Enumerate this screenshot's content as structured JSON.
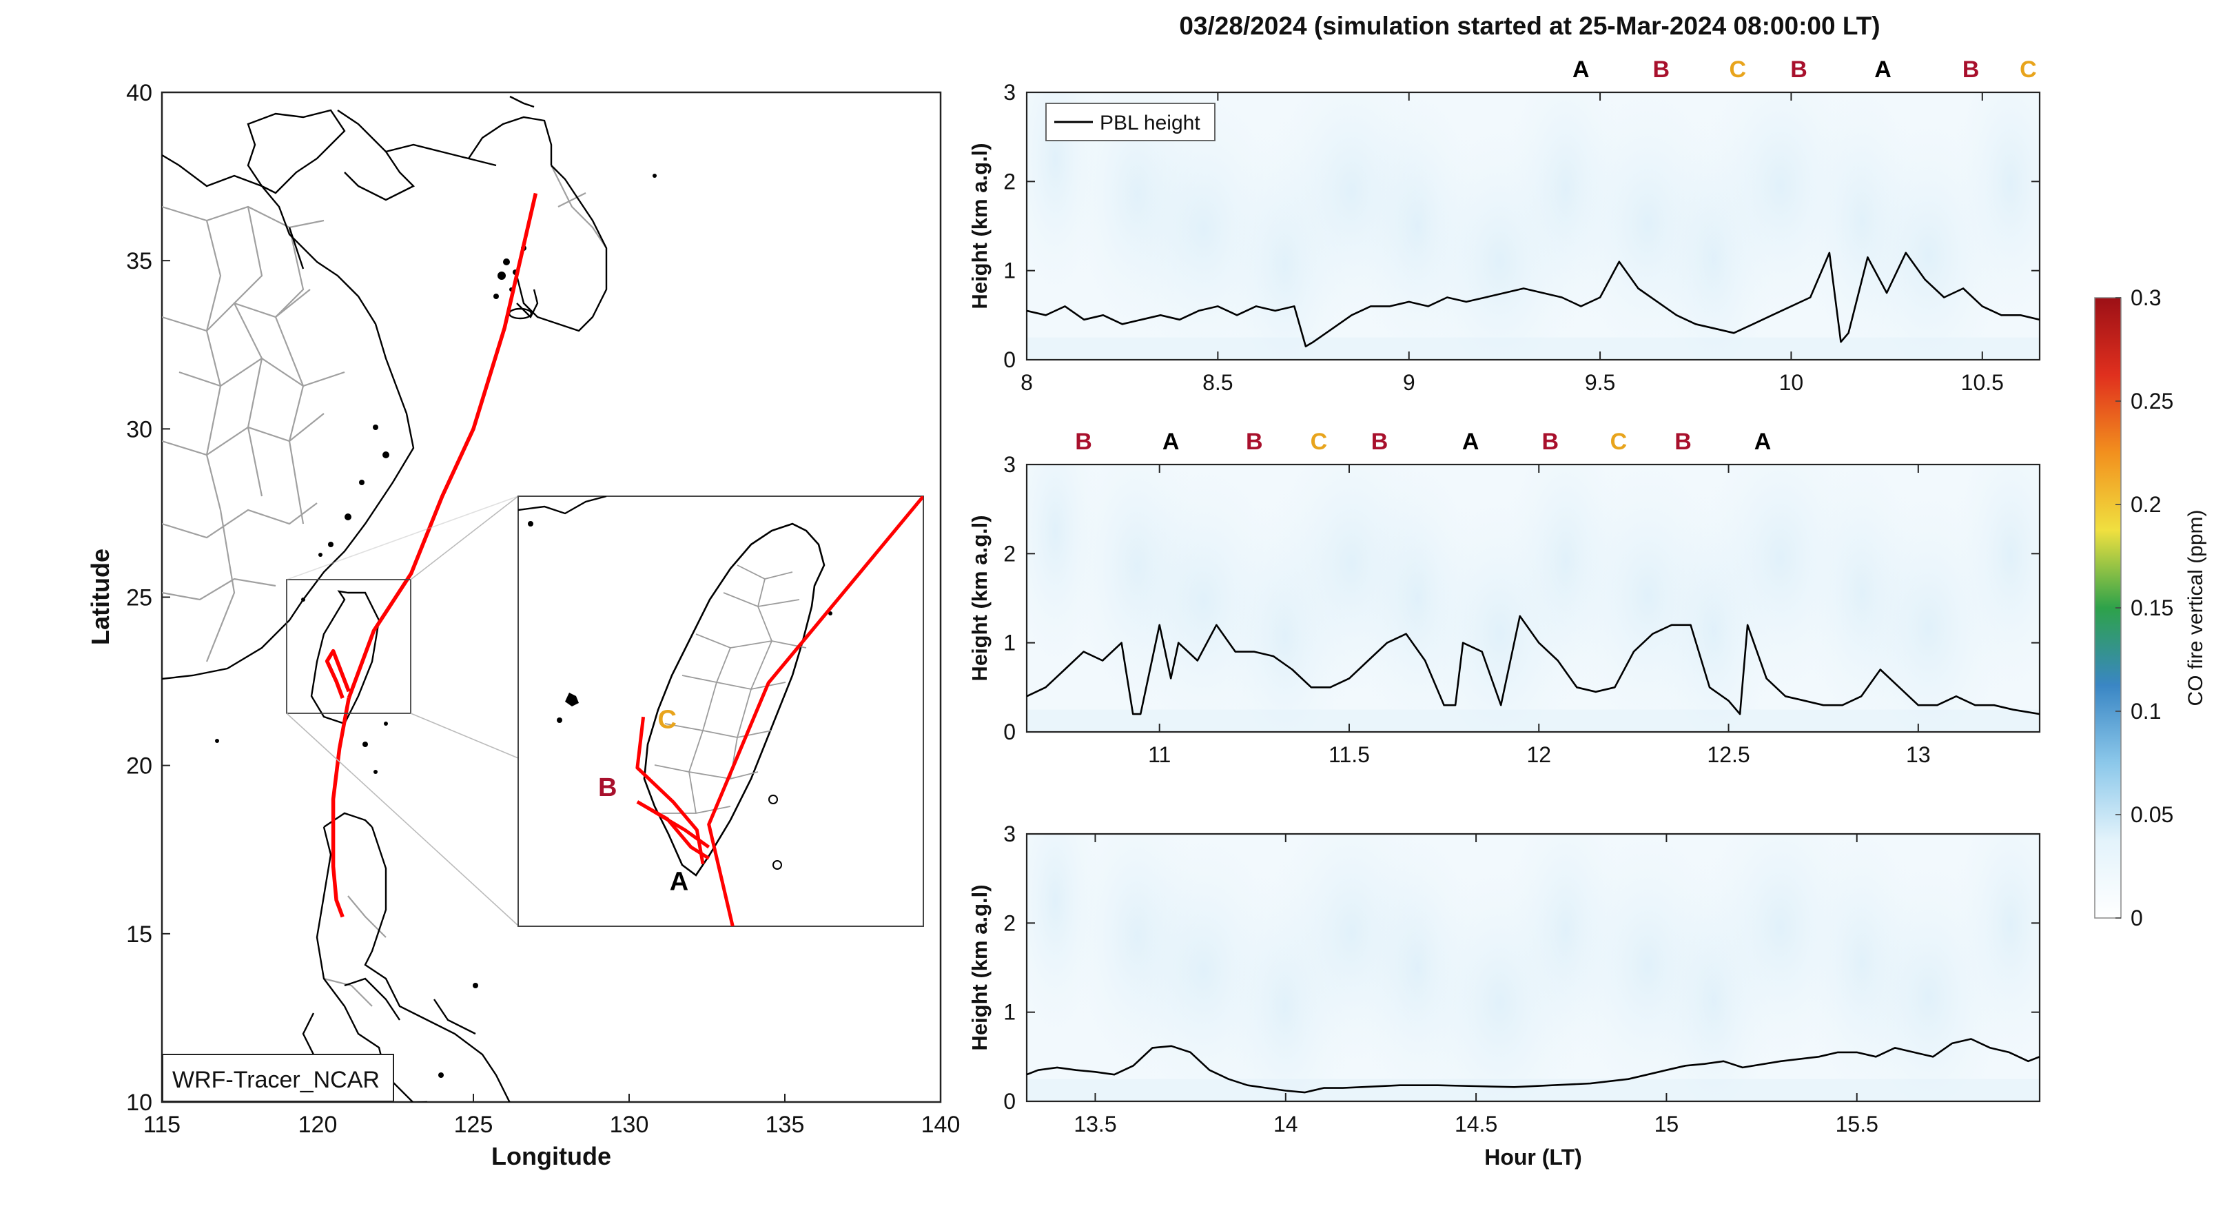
{
  "title": "03/28/2024 (simulation started at 25-Mar-2024 08:00:00 LT)",
  "colors": {
    "track": "#ff0000",
    "A": "#000000",
    "B": "#a8102c",
    "C": "#e8a41c",
    "pbl": "#000000",
    "coast": "#000000",
    "admin": "#9a9a9a"
  },
  "chart_data": [
    {
      "type": "line",
      "panel": "map",
      "xlabel": "Longitude",
      "ylabel": "Latitude",
      "xlim": [
        115,
        140
      ],
      "ylim": [
        10,
        40
      ],
      "xticks": [
        115,
        120,
        125,
        130,
        135,
        140
      ],
      "yticks": [
        10,
        15,
        20,
        25,
        30,
        35,
        40
      ],
      "model_label": "WRF-Tracer_NCAR",
      "series": [
        {
          "x": [
            127.0,
            126.5,
            126.0,
            125.0,
            124.0,
            123.0,
            121.8,
            121.0
          ],
          "y": [
            37.0,
            35.0,
            33.0,
            30.0,
            28.0,
            25.7,
            24.0,
            22.0
          ]
        },
        {
          "x": [
            121.0,
            120.7,
            120.5,
            120.5,
            120.6,
            120.8
          ],
          "y": [
            22.0,
            20.5,
            19.0,
            17.0,
            16.0,
            15.5
          ]
        },
        {
          "x": [
            120.8,
            120.6,
            120.3,
            120.5,
            121.0
          ],
          "y": [
            22.0,
            22.5,
            23.1,
            23.4,
            22.2
          ]
        }
      ],
      "inset": {
        "xlim": [
          119.1,
          122.5
        ],
        "ylim": [
          21.6,
          25.4
        ],
        "letters": [
          {
            "text": "C",
            "x": 120.35,
            "y": 23.35
          },
          {
            "text": "B",
            "x": 119.85,
            "y": 22.75
          },
          {
            "text": "A",
            "x": 120.45,
            "y": 21.92
          }
        ],
        "tracks": [
          {
            "x": [
              122.5,
              121.2,
              120.7,
              120.9
            ],
            "y": [
              25.4,
              23.75,
              22.5,
              21.6
            ]
          },
          {
            "x": [
              120.15,
              120.1,
              120.4,
              120.6,
              120.65
            ],
            "y": [
              23.45,
              23.0,
              22.7,
              22.45,
              22.15
            ]
          },
          {
            "x": [
              120.1,
              120.5,
              120.7
            ],
            "y": [
              22.7,
              22.45,
              22.3
            ]
          },
          {
            "x": [
              120.1,
              120.35,
              120.55,
              120.7
            ],
            "y": [
              22.7,
              22.55,
              22.3,
              22.2
            ]
          }
        ]
      }
    },
    {
      "type": "line",
      "panel": "pbl-1",
      "legend": "PBL height",
      "ylabel": "Height (km a.g.l)",
      "xlim": [
        8.0,
        10.65
      ],
      "ylim": [
        0,
        3
      ],
      "xticks": [
        8,
        8.5,
        9,
        9.5,
        10,
        10.5
      ],
      "yticks": [
        0,
        1,
        2,
        3
      ],
      "letters": [
        {
          "text": "A",
          "x": 9.45
        },
        {
          "text": "B",
          "x": 9.66
        },
        {
          "text": "C",
          "x": 9.86
        },
        {
          "text": "B",
          "x": 10.02
        },
        {
          "text": "A",
          "x": 10.24
        },
        {
          "text": "B",
          "x": 10.47
        },
        {
          "text": "C",
          "x": 10.62
        }
      ],
      "x": [
        8.0,
        8.05,
        8.1,
        8.15,
        8.2,
        8.25,
        8.3,
        8.35,
        8.4,
        8.45,
        8.5,
        8.55,
        8.6,
        8.65,
        8.7,
        8.73,
        8.75,
        8.8,
        8.85,
        8.9,
        8.95,
        9.0,
        9.05,
        9.1,
        9.15,
        9.2,
        9.25,
        9.3,
        9.35,
        9.4,
        9.45,
        9.5,
        9.55,
        9.6,
        9.65,
        9.7,
        9.75,
        9.8,
        9.85,
        9.9,
        9.95,
        10.0,
        10.05,
        10.1,
        10.13,
        10.15,
        10.2,
        10.25,
        10.3,
        10.35,
        10.4,
        10.45,
        10.5,
        10.55,
        10.6,
        10.65
      ],
      "y": [
        0.55,
        0.5,
        0.6,
        0.45,
        0.5,
        0.4,
        0.45,
        0.5,
        0.45,
        0.55,
        0.6,
        0.5,
        0.6,
        0.55,
        0.6,
        0.15,
        0.2,
        0.35,
        0.5,
        0.6,
        0.6,
        0.65,
        0.6,
        0.7,
        0.65,
        0.7,
        0.75,
        0.8,
        0.75,
        0.7,
        0.6,
        0.7,
        1.1,
        0.8,
        0.65,
        0.5,
        0.4,
        0.35,
        0.3,
        0.4,
        0.5,
        0.6,
        0.7,
        1.2,
        0.2,
        0.3,
        1.15,
        0.75,
        1.2,
        0.9,
        0.7,
        0.8,
        0.6,
        0.5,
        0.5,
        0.45
      ]
    },
    {
      "type": "line",
      "panel": "pbl-2",
      "ylabel": "Height (km a.g.l)",
      "xlim": [
        10.65,
        13.32
      ],
      "ylim": [
        0,
        3
      ],
      "xticks": [
        11,
        11.5,
        12,
        12.5,
        13
      ],
      "yticks": [
        0,
        1,
        2,
        3
      ],
      "letters": [
        {
          "text": "B",
          "x": 10.8
        },
        {
          "text": "A",
          "x": 11.03
        },
        {
          "text": "B",
          "x": 11.25
        },
        {
          "text": "C",
          "x": 11.42
        },
        {
          "text": "B",
          "x": 11.58
        },
        {
          "text": "A",
          "x": 11.82
        },
        {
          "text": "B",
          "x": 12.03
        },
        {
          "text": "C",
          "x": 12.21
        },
        {
          "text": "B",
          "x": 12.38
        },
        {
          "text": "A",
          "x": 12.59
        }
      ],
      "x": [
        10.65,
        10.7,
        10.75,
        10.8,
        10.85,
        10.9,
        10.93,
        10.95,
        11.0,
        11.03,
        11.05,
        11.1,
        11.15,
        11.2,
        11.25,
        11.3,
        11.35,
        11.4,
        11.45,
        11.5,
        11.55,
        11.6,
        11.65,
        11.7,
        11.75,
        11.78,
        11.8,
        11.85,
        11.9,
        11.95,
        12.0,
        12.05,
        12.1,
        12.15,
        12.2,
        12.25,
        12.3,
        12.35,
        12.4,
        12.45,
        12.5,
        12.53,
        12.55,
        12.6,
        12.65,
        12.7,
        12.75,
        12.8,
        12.85,
        12.9,
        12.95,
        13.0,
        13.05,
        13.1,
        13.15,
        13.2,
        13.25,
        13.32
      ],
      "y": [
        0.4,
        0.5,
        0.7,
        0.9,
        0.8,
        1.0,
        0.2,
        0.2,
        1.2,
        0.6,
        1.0,
        0.8,
        1.2,
        0.9,
        0.9,
        0.85,
        0.7,
        0.5,
        0.5,
        0.6,
        0.8,
        1.0,
        1.1,
        0.8,
        0.3,
        0.3,
        1.0,
        0.9,
        0.3,
        1.3,
        1.0,
        0.8,
        0.5,
        0.45,
        0.5,
        0.9,
        1.1,
        1.2,
        1.2,
        0.5,
        0.35,
        0.2,
        1.2,
        0.6,
        0.4,
        0.35,
        0.3,
        0.3,
        0.4,
        0.7,
        0.5,
        0.3,
        0.3,
        0.4,
        0.3,
        0.3,
        0.25,
        0.2
      ]
    },
    {
      "type": "line",
      "panel": "pbl-3",
      "ylabel": "Height (km a.g.l)",
      "xlabel": "Hour (LT)",
      "xlim": [
        13.32,
        15.98
      ],
      "ylim": [
        0,
        3
      ],
      "xticks": [
        13.5,
        14,
        14.5,
        15,
        15.5
      ],
      "yticks": [
        0,
        1,
        2,
        3
      ],
      "x": [
        13.32,
        13.35,
        13.4,
        13.45,
        13.5,
        13.55,
        13.6,
        13.65,
        13.7,
        13.75,
        13.8,
        13.85,
        13.9,
        13.95,
        14.0,
        14.05,
        14.1,
        14.15,
        14.2,
        14.3,
        14.4,
        14.5,
        14.6,
        14.7,
        14.8,
        14.9,
        15.0,
        15.05,
        15.1,
        15.15,
        15.2,
        15.3,
        15.4,
        15.45,
        15.5,
        15.55,
        15.6,
        15.65,
        15.7,
        15.75,
        15.8,
        15.85,
        15.9,
        15.95,
        15.98
      ],
      "y": [
        0.3,
        0.35,
        0.38,
        0.35,
        0.33,
        0.3,
        0.4,
        0.6,
        0.62,
        0.55,
        0.35,
        0.25,
        0.18,
        0.15,
        0.12,
        0.1,
        0.15,
        0.15,
        0.16,
        0.18,
        0.18,
        0.17,
        0.16,
        0.18,
        0.2,
        0.25,
        0.35,
        0.4,
        0.42,
        0.45,
        0.38,
        0.45,
        0.5,
        0.55,
        0.55,
        0.5,
        0.6,
        0.55,
        0.5,
        0.65,
        0.7,
        0.6,
        0.55,
        0.45,
        0.5
      ]
    }
  ],
  "colorbar": {
    "label": "CO fire vertical (ppm)",
    "ticks": [
      "0",
      "0.05",
      "0.1",
      "0.15",
      "0.2",
      "0.25",
      "0.3"
    ],
    "min": 0,
    "max": 0.3,
    "colors": [
      "#ffffff",
      "#e3f3fb",
      "#8cc8ea",
      "#3a86c4",
      "#2ea24a",
      "#f0e040",
      "#f2901e",
      "#e0301e",
      "#9c1016"
    ]
  }
}
